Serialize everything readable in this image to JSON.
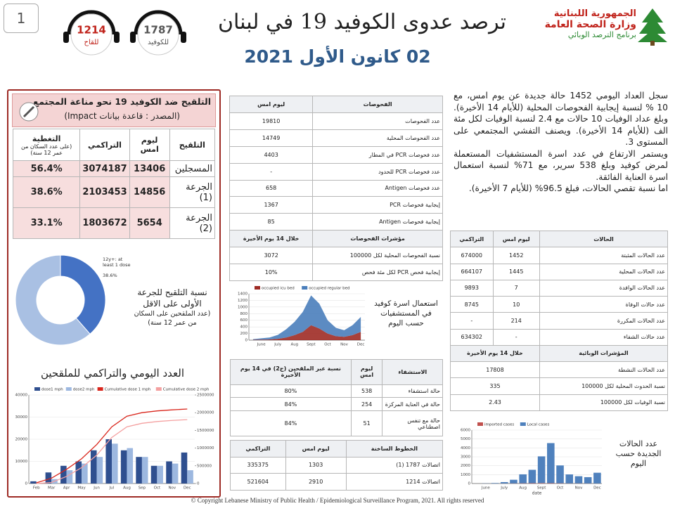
{
  "header": {
    "page_number": "1",
    "hotlines": [
      {
        "number": "1214",
        "label": "للقاح"
      },
      {
        "number": "1787",
        "label": "للكوفيد"
      }
    ],
    "title": "ترصد عدوى الكوفيد 19 في لبنان",
    "date": "02 كانون الأول 2021",
    "logo_lines": [
      "الجمهورية اللبنانية",
      "وزارة الصحة العامة",
      "برنامج الترصد الوبائي"
    ]
  },
  "vaccination": {
    "title": "التلقيح ضد الكوفيد 19  نحو مناعة المجتمع",
    "source": "(المصدر : قاعدة بيانات Impact)",
    "table": {
      "header": [
        "التلقيح",
        "ليوم امس",
        "التراكمي",
        "التغطية"
      ],
      "header_note": "(على عدد السكان من عمر 12 سنة)",
      "rows": [
        [
          "المسجلين",
          "13406",
          "3074187",
          "56.4%"
        ],
        [
          "الجرعة (1)",
          "14856",
          "2103453",
          "38.6%"
        ],
        [
          "الجرعة (2)",
          "5654",
          "1803672",
          "33.1%"
        ]
      ]
    }
  },
  "tests": {
    "header": [
      "الفحوصات",
      "ليوم امس"
    ],
    "rows": [
      [
        "عدد الفحوصات",
        "19810"
      ],
      [
        "عدد الفحوصات المحلية",
        "14749"
      ],
      [
        "عدد فحوصات PCR في المطار",
        "4403"
      ],
      [
        "عدد فحوصات PCR للحدود",
        "-"
      ],
      [
        "عدد فحوصات Antigen",
        "658"
      ],
      [
        "إيجابية فحوصات PCR",
        "1367"
      ],
      [
        "إيجابية فحوصات Antigen",
        "85"
      ]
    ],
    "indicators_header": [
      "مؤشرات الفحوصات",
      "خلال 14 يوم الأخيرة"
    ],
    "indicator_rows": [
      [
        "نسبة الفحوصات المحلية لكل 100000",
        "3072"
      ],
      [
        "إيجابية فحص PCR لكل مئة فحص",
        "10%"
      ]
    ]
  },
  "hospitalization": {
    "header": [
      "الاستشفاء",
      "ليوم امس",
      "نسبة عبر الملقحين (ج2) في 14 يوم الأخيرة"
    ],
    "rows": [
      [
        "حالة استشفاء",
        "538",
        "80%"
      ],
      [
        "حالة في العناية المركزة",
        "254",
        "84%"
      ],
      [
        "حالة مع تنفس اصطناعي",
        "51",
        "84%"
      ]
    ]
  },
  "hotline_calls": {
    "header": [
      "الخطوط الساخنة",
      "ليوم امس",
      "التراكمي"
    ],
    "rows": [
      [
        "اتصالات 1787 (1)",
        "1303",
        "335375"
      ],
      [
        "اتصالات 1214",
        "2910",
        "521604"
      ]
    ]
  },
  "summary": {
    "paragraphs": [
      "سجل العداد اليومي 1452 حالة جديدة عن يوم امس، مع 10 % لنسبة إيجابية الفحوصات المحلية (للأيام 14 الأخيرة). وبلغ عداد الوفيات 10 حالات مع 2.4 لنسبة الوفيات لكل مئة الف (للأيام 14 الأخيرة). ويصنف التفشي المجتمعي على المستوى 3.",
      "ويستمر الارتفاع في عدد اسرة المستشفيات المستعملة لمرض كوفيد وبلغ 538 سرير، مع 71% لنسبة استعمال اسرة العناية الفائقة.",
      "اما نسبة تقصي الحالات، فبلغ 96.5% (للأيام 7 الأخيرة)."
    ]
  },
  "cases": {
    "header": [
      "الحالات",
      "ليوم امس",
      "التراكمي"
    ],
    "rows": [
      [
        "عدد الحالات المثبتة",
        "1452",
        "674000"
      ],
      [
        "عدد الحالات المحلية",
        "1445",
        "664107"
      ],
      [
        "عدد الحالات الوافدة",
        "7",
        "9893"
      ],
      [
        "عدد حالات الوفاة",
        "10",
        "8745"
      ],
      [
        "عدد الحالات المكررة",
        "214",
        "-"
      ],
      [
        "عدد حالات الشفاء",
        "-",
        "634302"
      ]
    ],
    "indicators_header": [
      "المؤشرات الوبائية",
      "خلال 14 يوم الأخيرة"
    ],
    "indicator_rows": [
      [
        "عدد الحالات النشطة",
        "17808"
      ],
      [
        "نسبة الحدوث المحلية لكل 100000",
        "335"
      ],
      [
        "نسبة الوفيات لكل 100000",
        "2.43"
      ]
    ]
  },
  "footer": "© Copyright Lebanese Ministry of Public Health / Epidemiological Surveillance Program, 2021. All rights reserved",
  "chart_data": [
    {
      "type": "pie",
      "donut": true,
      "title": "نسبة التلقيح للجرعة الأولى على الاقل",
      "subtitle": "(عدد الملقحين على السكان من عمر 12 سنة)",
      "annotation": "12y+: at least 1 dose",
      "categories": [
        "12y+: at least 1 dose",
        null
      ],
      "values": [
        38.6,
        61.4
      ],
      "value_labels": [
        "38.6%",
        null
      ],
      "colors": [
        "#4472c4",
        "#a9c0e3"
      ]
    },
    {
      "type": "area",
      "stacked": true,
      "title": "استعمال اسرة كوفيد في المستشفيات حسب اليوم",
      "categories": [
        null,
        "June",
        null,
        "July",
        null,
        "Aug",
        null,
        "Sept",
        null,
        "Oct",
        null,
        "Nov",
        null,
        "Dec"
      ],
      "series": [
        {
          "name": "occupied icu bed",
          "color": "#9e2b25",
          "values": [
            10,
            15,
            20,
            40,
            80,
            150,
            250,
            450,
            350,
            200,
            120,
            100,
            150,
            250
          ]
        },
        {
          "name": "occupied regular bed",
          "color": "#4a7ebb",
          "values": [
            20,
            40,
            60,
            120,
            250,
            400,
            600,
            900,
            750,
            400,
            250,
            200,
            300,
            450
          ]
        }
      ],
      "ylim": [
        0,
        1400
      ],
      "yticks": [
        0,
        200,
        400,
        600,
        800,
        1000,
        1200,
        1400
      ]
    },
    {
      "type": "bar",
      "stacked": true,
      "title": "عدد الحالات الجديدة حسب اليوم",
      "xlabel": "date",
      "categories": [
        null,
        "June",
        null,
        "July",
        null,
        "Aug",
        null,
        "Sept",
        null,
        "Oct",
        null,
        "Nov",
        null,
        "Dec"
      ],
      "series": [
        {
          "name": "imported cases",
          "color": "#c0504d",
          "values": [
            0,
            5,
            5,
            10,
            20,
            30,
            40,
            50,
            40,
            30,
            20,
            20,
            15,
            10
          ]
        },
        {
          "name": "Local cases",
          "color": "#4f81bd",
          "values": [
            0,
            20,
            50,
            150,
            400,
            1000,
            1500,
            3000,
            4500,
            2000,
            1000,
            800,
            700,
            1200
          ]
        }
      ],
      "ylim": [
        0,
        6000
      ],
      "yticks": [
        0,
        1000,
        2000,
        3000,
        4000,
        5000,
        6000
      ]
    },
    {
      "type": "combo",
      "title": "العدد اليومي والتراكمي للملقحين",
      "categories": [
        "Feb",
        "Mar",
        "Apr",
        "May",
        "Jun",
        "Jul",
        "Aug",
        "Sep",
        "Oct",
        "Nov",
        "Dec"
      ],
      "series": [
        {
          "name": "dose1 mph",
          "color": "#2f4f8f",
          "values": [
            1000,
            5000,
            8000,
            10000,
            15000,
            20000,
            15000,
            12000,
            8000,
            10000,
            14000
          ]
        },
        {
          "name": "dose2 mph",
          "color": "#9db8e0",
          "values": [
            0,
            2000,
            6000,
            9000,
            12000,
            18000,
            16000,
            12000,
            8000,
            9000,
            6000
          ]
        },
        {
          "name": "Cumulative dose 1 mph",
          "color": "#d9261c",
          "axis": "y2",
          "values": [
            20000,
            150000,
            400000,
            700000,
            1100000,
            1600000,
            1900000,
            2000000,
            2050000,
            2080000,
            2103453
          ]
        },
        {
          "name": "Cumulative dose 2 mph",
          "color": "#f4a0a0",
          "axis": "y2",
          "values": [
            0,
            30000,
            200000,
            450000,
            800000,
            1300000,
            1600000,
            1700000,
            1750000,
            1780000,
            1803672
          ]
        }
      ],
      "ylim": [
        0,
        40000
      ],
      "yticks": [
        0,
        10000,
        20000,
        30000,
        40000
      ],
      "y2lim": [
        0,
        2500000
      ],
      "y2ticks": [
        0,
        500000,
        1000000,
        1500000,
        2000000,
        2500000
      ]
    }
  ]
}
